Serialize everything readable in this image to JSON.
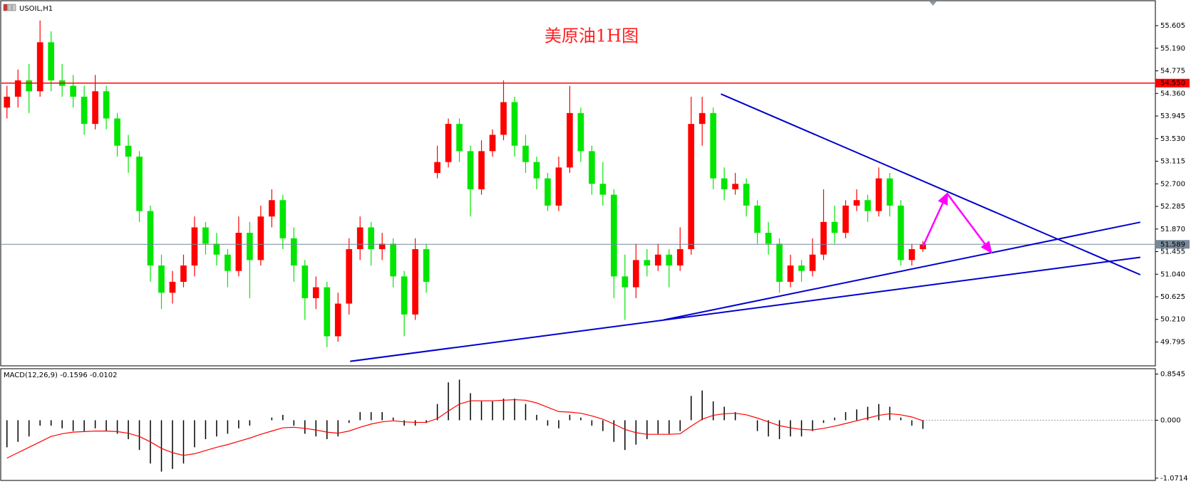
{
  "chart_data": [
    {
      "type": "candlestick",
      "symbol_label": "USOIL,H1",
      "title": "美原油1H图",
      "xlim": [
        -0.5,
        104
      ],
      "ylim": [
        49.37,
        56.05
      ],
      "yticks": [
        49.795,
        {
          "value": 50.21,
          "label": "50.210"
        },
        50.625,
        {
          "value": 51.04,
          "label": "51.040"
        },
        51.455,
        {
          "value": 51.87,
          "label": "51.870"
        },
        52.285,
        {
          "value": 52.7,
          "label": "52.700"
        },
        53.115,
        {
          "value": 53.53,
          "label": "53.530"
        },
        53.945,
        {
          "value": 54.36,
          "label": "54.360"
        },
        54.775,
        {
          "value": 55.19,
          "label": "55.190"
        },
        55.605
      ],
      "up_color": "#ff0000",
      "down_color": "#00e600",
      "open": [
        54.1,
        54.3,
        54.6,
        54.4,
        55.3,
        54.6,
        54.5,
        54.3,
        53.8,
        54.4,
        53.9,
        53.4,
        53.2,
        52.2,
        51.2,
        50.7,
        50.9,
        51.2,
        51.9,
        51.6,
        51.4,
        51.1,
        51.8,
        51.3,
        52.1,
        52.4,
        51.7,
        51.2,
        50.6,
        50.8,
        49.9,
        50.5,
        51.5,
        51.9,
        51.5,
        51.6,
        51.0,
        50.3,
        51.5,
        52.9,
        53.1,
        53.8,
        53.3,
        52.6,
        53.3,
        53.6,
        54.2,
        53.4,
        53.1,
        52.8,
        52.3,
        53.0,
        54.0,
        53.3,
        52.7,
        52.5,
        51.0,
        50.8,
        51.3,
        51.2,
        51.4,
        51.2,
        51.5,
        53.8,
        54.0,
        52.8,
        52.6,
        52.7,
        52.3,
        51.8,
        51.6,
        50.9,
        51.2,
        51.1,
        51.4,
        52.0,
        51.8,
        52.3,
        52.4,
        52.2,
        52.8,
        52.3,
        51.3,
        51.5
      ],
      "high": [
        54.5,
        54.8,
        54.9,
        55.7,
        55.5,
        54.9,
        54.7,
        54.5,
        54.7,
        54.5,
        54.0,
        53.6,
        53.3,
        52.3,
        51.4,
        51.1,
        51.4,
        52.1,
        52.0,
        51.8,
        51.5,
        52.1,
        52.0,
        52.3,
        52.6,
        52.5,
        51.9,
        51.3,
        51.0,
        50.9,
        50.7,
        51.7,
        52.1,
        52.0,
        51.8,
        51.7,
        51.1,
        51.7,
        51.6,
        53.4,
        53.9,
        53.9,
        53.4,
        53.5,
        53.7,
        54.6,
        54.3,
        53.6,
        53.2,
        52.9,
        53.2,
        54.5,
        54.1,
        53.4,
        53.1,
        52.6,
        51.4,
        51.6,
        51.5,
        51.6,
        51.5,
        51.9,
        54.3,
        54.3,
        54.1,
        53.0,
        52.9,
        52.8,
        52.4,
        52.0,
        51.7,
        51.4,
        51.3,
        51.7,
        52.6,
        52.3,
        52.4,
        52.6,
        52.5,
        53.0,
        52.9,
        52.4,
        51.6,
        51.65
      ],
      "low": [
        53.9,
        54.1,
        54.0,
        54.3,
        54.4,
        54.3,
        54.1,
        53.6,
        53.7,
        53.7,
        53.2,
        52.9,
        52.0,
        50.9,
        50.4,
        50.5,
        50.8,
        51.0,
        51.4,
        51.2,
        50.8,
        51.0,
        50.6,
        51.2,
        51.9,
        51.5,
        50.9,
        50.2,
        50.4,
        49.7,
        49.8,
        50.3,
        51.3,
        51.2,
        51.3,
        50.8,
        49.9,
        50.2,
        50.7,
        52.8,
        53.0,
        53.1,
        52.1,
        52.5,
        53.2,
        53.5,
        53.2,
        52.9,
        52.6,
        52.2,
        52.2,
        52.9,
        53.1,
        52.5,
        52.3,
        50.6,
        50.2,
        50.6,
        51.0,
        51.1,
        50.8,
        51.1,
        51.4,
        53.4,
        52.6,
        52.4,
        52.5,
        52.1,
        51.6,
        51.4,
        50.7,
        50.8,
        50.9,
        51.0,
        51.3,
        51.6,
        51.7,
        52.2,
        52.0,
        52.1,
        52.1,
        51.2,
        51.2,
        51.45
      ],
      "close": [
        54.3,
        54.6,
        54.4,
        55.3,
        54.6,
        54.5,
        54.3,
        53.8,
        54.4,
        53.9,
        53.4,
        53.2,
        52.2,
        51.2,
        50.7,
        50.9,
        51.2,
        51.9,
        51.6,
        51.4,
        51.1,
        51.8,
        51.3,
        52.1,
        52.4,
        51.7,
        51.2,
        50.6,
        50.8,
        49.9,
        50.5,
        51.5,
        51.9,
        51.5,
        51.6,
        51.0,
        50.3,
        51.5,
        50.9,
        53.1,
        53.8,
        53.3,
        52.6,
        53.3,
        53.6,
        54.2,
        53.4,
        53.1,
        52.8,
        52.3,
        53.0,
        54.0,
        53.3,
        52.7,
        52.5,
        51.0,
        50.8,
        51.3,
        51.2,
        51.4,
        51.2,
        51.5,
        53.8,
        54.0,
        52.8,
        52.6,
        52.7,
        52.3,
        51.8,
        51.6,
        50.9,
        51.2,
        51.1,
        51.4,
        52.0,
        51.8,
        52.3,
        52.4,
        52.2,
        52.8,
        52.3,
        51.3,
        51.5,
        51.589
      ],
      "level_line": {
        "value": 54.55,
        "label": "54.550",
        "color": "#ff0000"
      },
      "price_line": {
        "value": 51.589,
        "color": "#778899"
      },
      "trendlines": [
        {
          "color": "#0000cd",
          "points": [
            [
              64.7,
              54.35
            ],
            [
              102.7,
              51.03
            ]
          ]
        },
        {
          "color": "#0000cd",
          "points": [
            [
              31.1,
              49.44
            ],
            [
              102.7,
              51.35
            ]
          ]
        },
        {
          "color": "#0000cd",
          "points": [
            [
              59.5,
              50.2
            ],
            [
              102.7,
              51.995
            ]
          ]
        }
      ],
      "arrows": {
        "color": "#ff00ff",
        "points": [
          [
            83,
            51.55
          ],
          [
            85.2,
            52.52
          ],
          [
            89.2,
            51.44
          ]
        ]
      }
    },
    {
      "type": "macd",
      "label": "MACD(12,26,9) -0.1596 -0.0102",
      "ylim": [
        -1.1,
        0.94
      ],
      "yticks": [
        0.8545,
        {
          "value": 0,
          "label": "0.000"
        },
        -1.0714
      ],
      "histogram_color": "#000000",
      "signal_color": "#ff0000",
      "histogram": [
        -0.5,
        -0.4,
        -0.3,
        -0.1,
        -0.1,
        -0.15,
        -0.2,
        -0.2,
        -0.15,
        -0.2,
        -0.25,
        -0.35,
        -0.55,
        -0.8,
        -0.95,
        -0.9,
        -0.8,
        -0.5,
        -0.35,
        -0.3,
        -0.25,
        -0.15,
        -0.1,
        0.0,
        0.05,
        0.1,
        -0.1,
        -0.25,
        -0.3,
        -0.35,
        -0.3,
        -0.05,
        0.15,
        0.15,
        0.15,
        0.05,
        -0.1,
        -0.1,
        -0.05,
        0.3,
        0.7,
        0.75,
        0.5,
        0.35,
        0.35,
        0.4,
        0.4,
        0.3,
        0.1,
        -0.1,
        -0.15,
        0.1,
        0.05,
        -0.1,
        -0.2,
        -0.4,
        -0.55,
        -0.45,
        -0.35,
        -0.25,
        -0.25,
        -0.2,
        0.45,
        0.55,
        0.35,
        0.25,
        0.15,
        0.0,
        -0.2,
        -0.3,
        -0.35,
        -0.3,
        -0.3,
        -0.2,
        -0.05,
        0.05,
        0.15,
        0.2,
        0.25,
        0.3,
        0.25,
        0.05,
        -0.1,
        -0.1596
      ],
      "signal": [
        -0.7,
        -0.6,
        -0.5,
        -0.4,
        -0.3,
        -0.25,
        -0.22,
        -0.21,
        -0.2,
        -0.2,
        -0.21,
        -0.24,
        -0.3,
        -0.4,
        -0.52,
        -0.6,
        -0.65,
        -0.62,
        -0.56,
        -0.5,
        -0.45,
        -0.39,
        -0.33,
        -0.26,
        -0.2,
        -0.14,
        -0.13,
        -0.15,
        -0.18,
        -0.22,
        -0.24,
        -0.2,
        -0.13,
        -0.07,
        -0.03,
        -0.01,
        -0.03,
        -0.04,
        -0.04,
        0.03,
        0.17,
        0.3,
        0.36,
        0.36,
        0.36,
        0.37,
        0.38,
        0.37,
        0.32,
        0.24,
        0.16,
        0.15,
        0.13,
        0.08,
        0.02,
        -0.07,
        -0.17,
        -0.23,
        -0.26,
        -0.26,
        -0.26,
        -0.25,
        -0.11,
        0.02,
        0.09,
        0.12,
        0.13,
        0.1,
        0.04,
        -0.03,
        -0.1,
        -0.14,
        -0.17,
        -0.18,
        -0.15,
        -0.11,
        -0.06,
        -0.01,
        0.04,
        0.09,
        0.12,
        0.1,
        0.06,
        -0.0102
      ]
    }
  ]
}
